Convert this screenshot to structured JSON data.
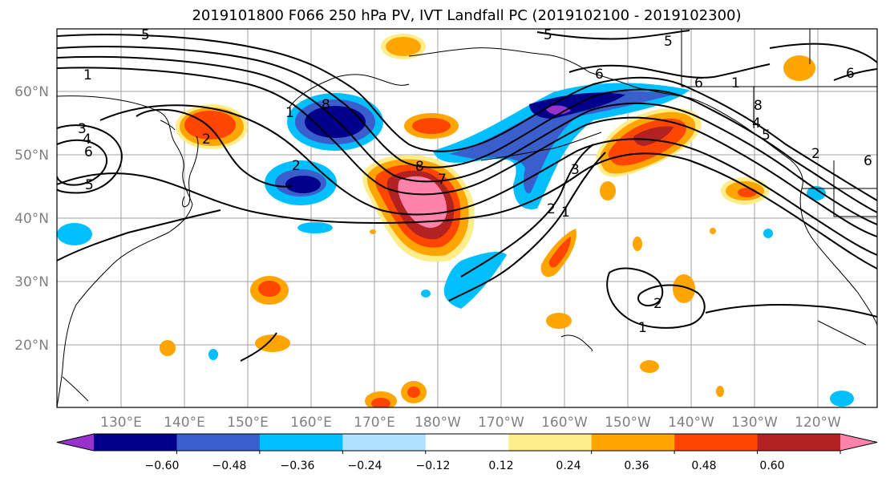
{
  "title": "2019101800 F066 250 hPa PV, IVT Landfall PC (2019102100 - 2019102300)",
  "lat_labels": [
    "60°N",
    "50°N",
    "40°N",
    "30°N",
    "20°N"
  ],
  "lon_labels": [
    "130°E",
    "140°E",
    "150°E",
    "160°E",
    "170°E",
    "180°W",
    "170°W",
    "160°W",
    "150°W",
    "140°W",
    "130°W",
    "120°W"
  ],
  "colorbar": {
    "ticks": [
      "−0.60",
      "−0.48",
      "−0.36",
      "−0.24",
      "−0.12",
      "0.12",
      "0.24",
      "0.36",
      "0.48",
      "0.60"
    ],
    "colors": [
      "#9932cc",
      "#00008b",
      "#3a5fcd",
      "#00bfff",
      "#b0e2ff",
      "#ffffff",
      "#ffec8b",
      "#ffa500",
      "#ff4500",
      "#b22222",
      "#ff82ab"
    ]
  },
  "contour_labels": [
    "5",
    "1",
    "3",
    "4",
    "6",
    "5",
    "2",
    "1",
    "2",
    "8",
    "5",
    "6",
    "6",
    "1",
    "8",
    "5",
    "2",
    "3",
    "7",
    "8",
    "6",
    "2",
    "1",
    "2",
    "1",
    "4",
    "5",
    "6"
  ]
}
